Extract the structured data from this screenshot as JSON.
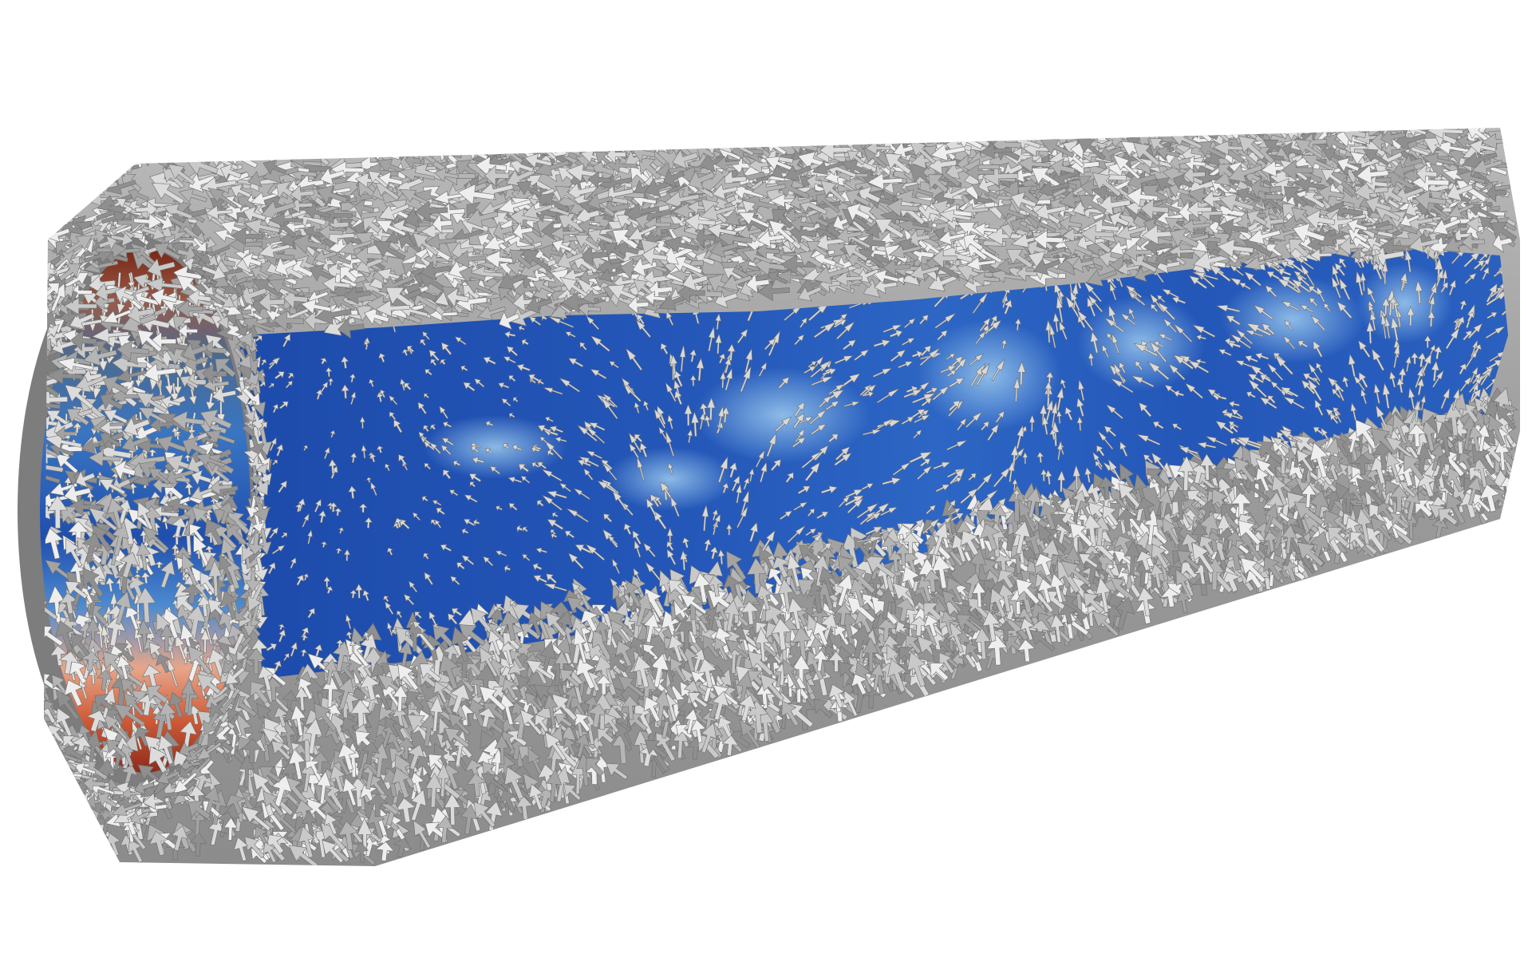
{
  "scene": {
    "background_color": "#ffffff",
    "shell_arrow_colors": [
      "#8f8f8f",
      "#a3a3a3",
      "#b5b5b5",
      "#c9c9c9",
      "#dcdcdc",
      "#eeeeee"
    ],
    "interior_arrow_color": "#d8d8d8",
    "interior_colormap": {
      "low": "#1a3f9e",
      "mid_low": "#2b63c0",
      "mid": "#5a98d6",
      "mid_high": "#e6b39a",
      "high": "#c8452a",
      "very_high": "#8a2418"
    }
  }
}
